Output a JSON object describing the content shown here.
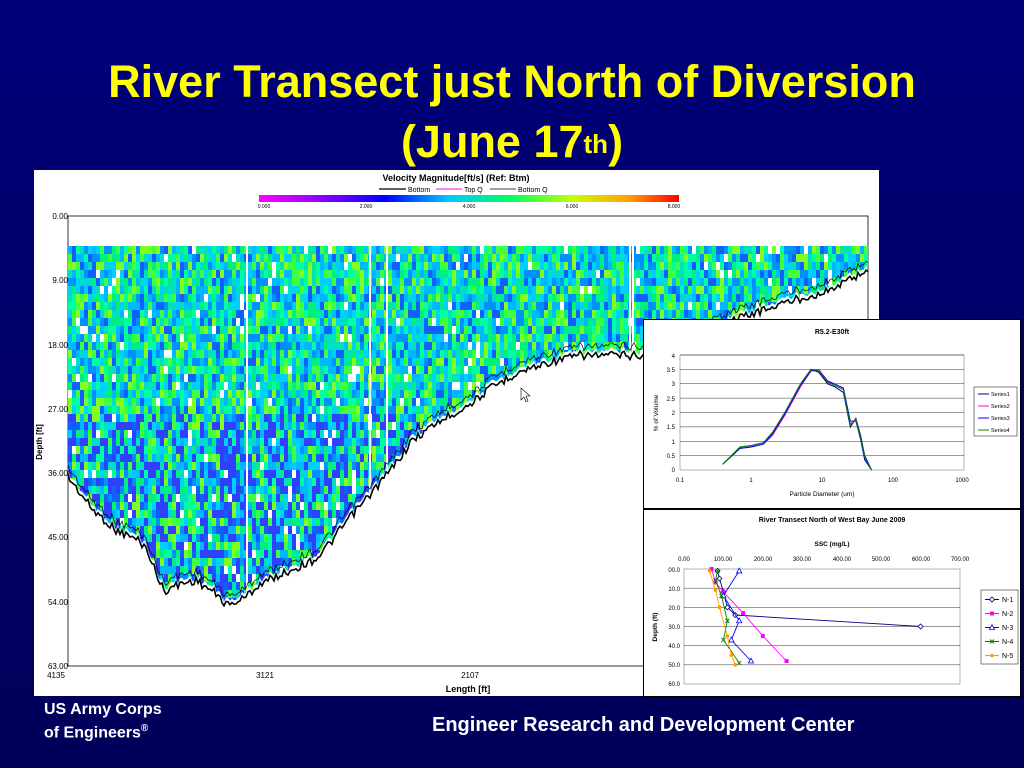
{
  "slide": {
    "title_line1": "River Transect just North of Diversion",
    "title_line2_prefix": "(June 17",
    "title_line2_sup": "th",
    "title_line2_suffix": ")",
    "footer_left_line1": "US Army Corps",
    "footer_left_line2": "of Engineers",
    "footer_left_reg": "®",
    "footer_right": "Engineer Research and Development Center"
  },
  "colors": {
    "background": "#00006e",
    "title": "#ffff00",
    "footer": "#ffffff"
  },
  "adcp": {
    "title": "Velocity Magnitude[ft/s] (Ref: Btm)",
    "legend": [
      "Bottom",
      "Top Q",
      "Bottom Q"
    ],
    "colorbar_ticks": [
      "0.000",
      "2.000",
      "4.000",
      "6.000",
      "8.000"
    ],
    "y_label": "Depth [ft]",
    "x_label": "Length [ft]",
    "y_ticks": [
      "0.00",
      "9.00",
      "18.00",
      "27.00",
      "36.00",
      "45.00",
      "54.00",
      "63.00"
    ],
    "x_ticks": [
      "4135",
      "3121",
      "2107"
    ],
    "depth_range": [
      0,
      63
    ],
    "length_ticks_values": [
      4135,
      3121,
      2107
    ],
    "bottom_profile_depth_ft": [
      [
        0,
        36.5
      ],
      [
        0.03,
        41
      ],
      [
        0.06,
        44
      ],
      [
        0.09,
        45.5
      ],
      [
        0.1,
        47
      ],
      [
        0.11,
        50
      ],
      [
        0.12,
        52.5
      ],
      [
        0.14,
        51.5
      ],
      [
        0.16,
        51
      ],
      [
        0.18,
        52.5
      ],
      [
        0.2,
        54.5
      ],
      [
        0.22,
        53.5
      ],
      [
        0.24,
        51.5
      ],
      [
        0.28,
        49.5
      ],
      [
        0.31,
        48
      ],
      [
        0.33,
        45.5
      ],
      [
        0.35,
        42.5
      ],
      [
        0.37,
        40
      ],
      [
        0.4,
        36
      ],
      [
        0.43,
        31.5
      ],
      [
        0.46,
        29
      ],
      [
        0.5,
        26.5
      ],
      [
        0.53,
        24
      ],
      [
        0.56,
        22
      ],
      [
        0.6,
        20.5
      ],
      [
        0.64,
        19.5
      ],
      [
        0.68,
        19.5
      ],
      [
        0.72,
        19.5
      ],
      [
        0.75,
        19
      ],
      [
        0.82,
        15
      ],
      [
        0.9,
        12
      ],
      [
        0.95,
        10.5
      ],
      [
        1.0,
        7.5
      ]
    ]
  },
  "psd_chart": {
    "title": "R5.2-E30ft",
    "ylabel": "% of Volume",
    "xlabel": "Particle Diameter (um)",
    "x_ticks": [
      "0.1",
      "1",
      "10",
      "100",
      "1000"
    ],
    "y_ticks": [
      "0",
      "0.5",
      "1",
      "1.5",
      "2",
      "2.5",
      "3",
      "3.5",
      "4"
    ],
    "legend": [
      "Series1",
      "Series2",
      "Series3",
      "Series4"
    ],
    "colors": [
      "#000080",
      "#ff00ff",
      "#0000ff",
      "#008000"
    ]
  },
  "ssc_chart": {
    "title": "River Transect North of West Bay June 2009",
    "top_axis_label": "SSC (mg/L)",
    "ylabel": "Depth (ft)",
    "x_ticks": [
      "0.00",
      "100.00",
      "200.00",
      "300.00",
      "400.00",
      "500.00",
      "600.00",
      "700.00"
    ],
    "y_ticks": [
      "00.0",
      "10.0",
      "20.0",
      "30.0",
      "40.0",
      "50.0",
      "60.0"
    ],
    "legend": [
      "N-1",
      "N-2",
      "N-3",
      "N-4",
      "N-5"
    ],
    "colors": [
      "#000080",
      "#ff00ff",
      "#0000ff",
      "#008000",
      "#ff9900"
    ]
  },
  "chart_data": [
    {
      "type": "line",
      "title": "R5.2-E30ft",
      "xlabel": "Particle Diameter (um)",
      "ylabel": "% of Volume",
      "xscale": "log",
      "xlim": [
        0.1,
        1000
      ],
      "ylim": [
        0,
        4
      ],
      "legend_placement": "right",
      "x": [
        0.4,
        0.7,
        1.0,
        1.5,
        2,
        3,
        5,
        7,
        9,
        12,
        15,
        20,
        25,
        30,
        35,
        40,
        50
      ],
      "series": [
        {
          "name": "Series1",
          "values": [
            0.2,
            0.8,
            0.85,
            0.95,
            1.3,
            2.0,
            3.0,
            3.5,
            3.4,
            3.0,
            2.9,
            2.7,
            1.5,
            1.8,
            1.2,
            0.5,
            0.0
          ]
        },
        {
          "name": "Series2",
          "values": [
            0.2,
            0.75,
            0.8,
            0.9,
            1.2,
            1.9,
            2.9,
            3.45,
            3.5,
            3.1,
            2.95,
            2.8,
            1.6,
            1.75,
            1.1,
            0.4,
            0.0
          ]
        },
        {
          "name": "Series3",
          "values": [
            0.2,
            0.75,
            0.8,
            0.9,
            1.25,
            1.95,
            2.95,
            3.45,
            3.45,
            3.1,
            3.0,
            2.85,
            1.7,
            1.7,
            1.05,
            0.35,
            0.0
          ]
        },
        {
          "name": "Series4",
          "values": [
            0.2,
            0.8,
            0.85,
            0.95,
            1.3,
            2.0,
            3.0,
            3.5,
            3.45,
            3.05,
            2.95,
            2.8,
            1.55,
            1.75,
            1.1,
            0.45,
            0.0
          ]
        }
      ]
    },
    {
      "type": "line",
      "title": "River Transect North of West Bay June 2009",
      "xlabel": "SSC (mg/L)",
      "ylabel": "Depth (ft)",
      "xlim": [
        0,
        700
      ],
      "ylim": [
        60,
        0
      ],
      "legend_placement": "right",
      "series": [
        {
          "name": "N-1",
          "points": [
            [
              85,
              1
            ],
            [
              90,
              5
            ],
            [
              100,
              12
            ],
            [
              110,
              20
            ],
            [
              130,
              24
            ],
            [
              600,
              30
            ]
          ]
        },
        {
          "name": "N-2",
          "points": [
            [
              70,
              0
            ],
            [
              80,
              7
            ],
            [
              100,
              12
            ],
            [
              150,
              23
            ],
            [
              200,
              35
            ],
            [
              260,
              48
            ]
          ]
        },
        {
          "name": "N-3",
          "points": [
            [
              140,
              1
            ],
            [
              100,
              14
            ],
            [
              140,
              27
            ],
            [
              120,
              37
            ],
            [
              170,
              48
            ]
          ]
        },
        {
          "name": "N-4",
          "points": [
            [
              85,
              1
            ],
            [
              80,
              6
            ],
            [
              95,
              14
            ],
            [
              110,
              27
            ],
            [
              100,
              37
            ],
            [
              140,
              49
            ]
          ]
        },
        {
          "name": "N-5",
          "points": [
            [
              65,
              1
            ],
            [
              80,
              11
            ],
            [
              90,
              20
            ],
            [
              110,
              35
            ],
            [
              120,
              45
            ],
            [
              130,
              50
            ]
          ]
        }
      ]
    }
  ]
}
